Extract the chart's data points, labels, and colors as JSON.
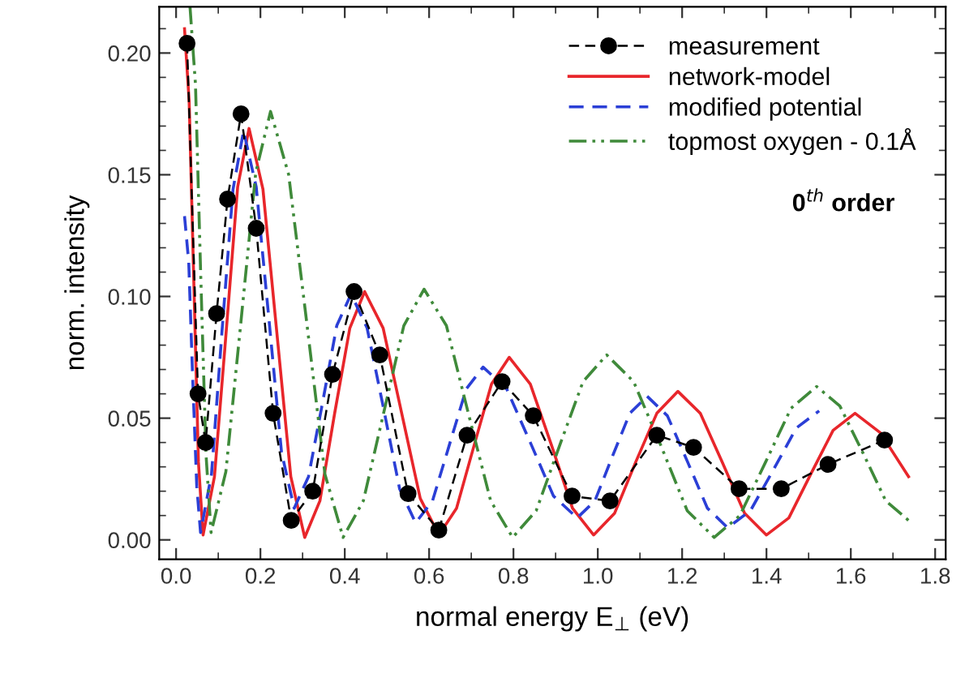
{
  "chart_data": {
    "type": "line",
    "xlabel": "normal energy E$_{⊥}$ (eV)",
    "ylabel": "norm. intensity",
    "xlim": [
      -0.04,
      1.825
    ],
    "ylim": [
      -0.008,
      0.219
    ],
    "xticks": [
      {
        "value": 0,
        "label": "0.0"
      },
      0.2,
      0.4,
      0.6,
      0.8,
      {
        "value": 1,
        "label": "1.0"
      },
      1.2,
      1.4,
      1.6,
      1.8
    ],
    "yticks": [
      {
        "value": 0,
        "label": "0.00"
      },
      0.05,
      {
        "value": 0.1,
        "label": "0.10"
      },
      0.15,
      {
        "value": 0.2,
        "label": "0.20"
      }
    ],
    "legend": "top right",
    "grid": false,
    "annotations": [
      "0$^{th}$ order"
    ],
    "series": [
      {
        "name": "measurement",
        "color": "#000000",
        "marker": "circle",
        "line_style": "dashed",
        "x": [
          0.026,
          0.052,
          0.07,
          0.096,
          0.122,
          0.154,
          0.19,
          0.23,
          0.273,
          0.324,
          0.371,
          0.422,
          0.483,
          0.55,
          0.623,
          0.69,
          0.773,
          0.847,
          0.939,
          1.029,
          1.14,
          1.227,
          1.335,
          1.435,
          1.546,
          1.68
        ],
        "values": [
          0.204,
          0.06,
          0.04,
          0.093,
          0.14,
          0.175,
          0.128,
          0.052,
          0.008,
          0.02,
          0.068,
          0.102,
          0.076,
          0.019,
          0.004,
          0.043,
          0.065,
          0.051,
          0.018,
          0.016,
          0.043,
          0.038,
          0.021,
          0.021,
          0.031,
          0.041
        ]
      },
      {
        "name": "network-model",
        "color": "#e8262b",
        "marker": "none",
        "line_style": "solid",
        "x": [
          0.02,
          0.031,
          0.042,
          0.053,
          0.064,
          0.091,
          0.119,
          0.146,
          0.173,
          0.206,
          0.239,
          0.272,
          0.305,
          0.341,
          0.376,
          0.412,
          0.447,
          0.491,
          0.535,
          0.579,
          0.623,
          0.665,
          0.707,
          0.748,
          0.79,
          0.84,
          0.89,
          0.94,
          0.99,
          1.04,
          1.09,
          1.14,
          1.19,
          1.243,
          1.295,
          1.348,
          1.4,
          1.453,
          1.505,
          1.558,
          1.61,
          1.67,
          1.737
        ],
        "values": [
          0.21,
          0.18,
          0.106,
          0.032,
          0.002,
          0.026,
          0.086,
          0.145,
          0.169,
          0.144,
          0.085,
          0.026,
          0.001,
          0.016,
          0.052,
          0.087,
          0.102,
          0.087,
          0.052,
          0.017,
          0.002,
          0.013,
          0.039,
          0.064,
          0.075,
          0.064,
          0.039,
          0.013,
          0.002,
          0.011,
          0.032,
          0.052,
          0.061,
          0.052,
          0.032,
          0.011,
          0.002,
          0.009,
          0.027,
          0.045,
          0.052,
          0.044,
          0.026
        ]
      },
      {
        "name": "modified potential",
        "color": "#2b3fd6",
        "marker": "none",
        "line_style": "dashed",
        "x": [
          0.02,
          0.03,
          0.039,
          0.049,
          0.058,
          0.084,
          0.109,
          0.135,
          0.16,
          0.19,
          0.22,
          0.25,
          0.28,
          0.314,
          0.348,
          0.381,
          0.415,
          0.453,
          0.492,
          0.53,
          0.568,
          0.608,
          0.648,
          0.688,
          0.728,
          0.784,
          0.84,
          0.895,
          0.951,
          0.993,
          1.034,
          1.076,
          1.117,
          1.165,
          1.213,
          1.26,
          1.308,
          1.362,
          1.417,
          1.471,
          1.525
        ],
        "values": [
          0.133,
          0.114,
          0.068,
          0.022,
          0.003,
          0.027,
          0.086,
          0.144,
          0.168,
          0.145,
          0.091,
          0.036,
          0.013,
          0.026,
          0.057,
          0.088,
          0.101,
          0.087,
          0.054,
          0.021,
          0.007,
          0.016,
          0.039,
          0.062,
          0.071,
          0.062,
          0.04,
          0.018,
          0.009,
          0.016,
          0.034,
          0.052,
          0.059,
          0.051,
          0.032,
          0.013,
          0.005,
          0.012,
          0.029,
          0.046,
          0.053
        ]
      },
      {
        "name": "topmost oxygen - 0.1Å",
        "color": "#3f8a3a",
        "marker": "none",
        "line_style": "dashdot",
        "x": [
          0.033,
          0.046,
          0.058,
          0.071,
          0.083,
          0.118,
          0.154,
          0.189,
          0.224,
          0.267,
          0.31,
          0.353,
          0.396,
          0.444,
          0.492,
          0.54,
          0.588,
          0.641,
          0.693,
          0.746,
          0.798,
          0.854,
          0.91,
          0.965,
          1.021,
          1.085,
          1.149,
          1.212,
          1.276,
          1.337,
          1.398,
          1.458,
          1.519,
          1.574,
          1.628,
          1.683,
          1.737
        ],
        "values": [
          0.219,
          0.187,
          0.111,
          0.035,
          0.003,
          0.028,
          0.09,
          0.151,
          0.176,
          0.15,
          0.089,
          0.027,
          0.001,
          0.016,
          0.052,
          0.088,
          0.103,
          0.088,
          0.052,
          0.016,
          0.001,
          0.012,
          0.039,
          0.065,
          0.076,
          0.065,
          0.039,
          0.012,
          0.001,
          0.01,
          0.032,
          0.054,
          0.063,
          0.055,
          0.036,
          0.016,
          0.008
        ]
      }
    ]
  }
}
